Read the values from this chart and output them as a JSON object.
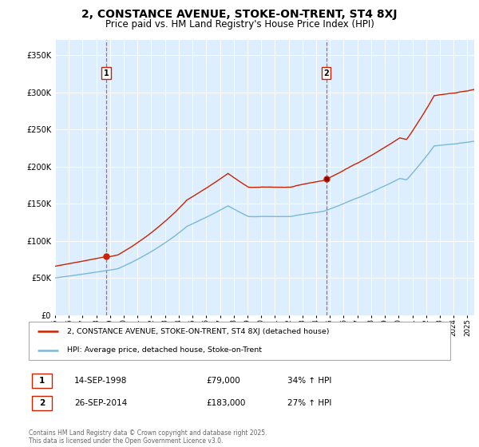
{
  "title": "2, CONSTANCE AVENUE, STOKE-ON-TRENT, ST4 8XJ",
  "subtitle": "Price paid vs. HM Land Registry's House Price Index (HPI)",
  "title_fontsize": 10,
  "subtitle_fontsize": 8.5,
  "ylim": [
    0,
    370000
  ],
  "yticks": [
    0,
    50000,
    100000,
    150000,
    200000,
    250000,
    300000,
    350000
  ],
  "ytick_labels": [
    "£0",
    "£50K",
    "£100K",
    "£150K",
    "£200K",
    "£250K",
    "£300K",
    "£350K"
  ],
  "line_color_hpi": "#7ab8d9",
  "line_color_price": "#cc2200",
  "vline_color": "#cc2200",
  "sale1_date": 1998.71,
  "sale1_price": 79000,
  "sale2_date": 2014.73,
  "sale2_price": 183000,
  "legend_label_price": "2, CONSTANCE AVENUE, STOKE-ON-TRENT, ST4 8XJ (detached house)",
  "legend_label_hpi": "HPI: Average price, detached house, Stoke-on-Trent",
  "annotation1": "1",
  "annotation2": "2",
  "table_row1": [
    "1",
    "14-SEP-1998",
    "£79,000",
    "34% ↑ HPI"
  ],
  "table_row2": [
    "2",
    "26-SEP-2014",
    "£183,000",
    "27% ↑ HPI"
  ],
  "footnote": "Contains HM Land Registry data © Crown copyright and database right 2025.\nThis data is licensed under the Open Government Licence v3.0.",
  "bg_color": "#ddeeff",
  "grid_color": "#ffffff",
  "xmin": 1995,
  "xmax": 2025.5
}
